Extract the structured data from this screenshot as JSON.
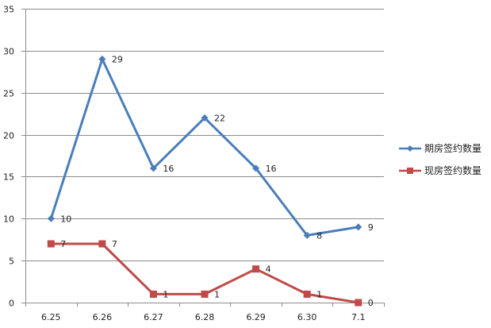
{
  "chart_data": {
    "type": "line",
    "title": "",
    "xlabel": "",
    "ylabel": "",
    "categories": [
      "6.25",
      "6.26",
      "6.27",
      "6.28",
      "6.29",
      "6.30",
      "7.1"
    ],
    "ylim": [
      0,
      35
    ],
    "yticks": [
      "0",
      "5",
      "10",
      "15",
      "20",
      "25",
      "30",
      "35"
    ],
    "grid": true,
    "legend_position": "right",
    "data_labels": true,
    "series": [
      {
        "name": "期房签约数量",
        "values": [
          10,
          29,
          16,
          22,
          16,
          8,
          9
        ],
        "color": "#4a7ebb",
        "marker": "diamond"
      },
      {
        "name": "现房签约数量",
        "values": [
          7,
          7,
          1,
          1,
          4,
          1,
          0
        ],
        "color": "#be4b48",
        "marker": "square"
      }
    ]
  }
}
